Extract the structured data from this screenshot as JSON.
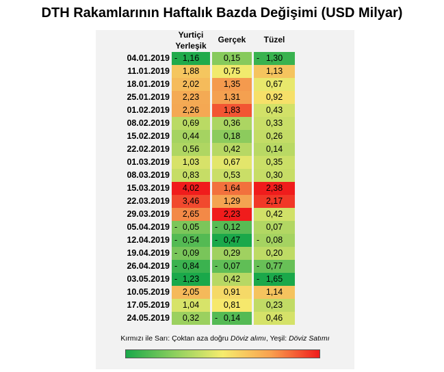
{
  "chart_data": {
    "type": "heatmap",
    "title": "DTH Rakamlarının Haftalık Bazda Değişimi (USD Milyar)",
    "columns": [
      "Yurtiçi Yerleşik",
      "Gerçek",
      "Tüzel"
    ],
    "rows": [
      "04.01.2019",
      "11.01.2019",
      "18.01.2019",
      "25.01.2019",
      "01.02.2019",
      "08.02.2019",
      "15.02.2019",
      "22.02.2019",
      "01.03.2019",
      "08.03.2019",
      "15.03.2019",
      "22.03.2019",
      "29.03.2019",
      "05.04.2019",
      "12.04.2019",
      "19.04.2019",
      "26.04.2019",
      "03.05.2019",
      "10.05.2019",
      "17.05.2019",
      "24.05.2019"
    ],
    "values": [
      [
        -1.16,
        0.15,
        -1.3
      ],
      [
        1.88,
        0.75,
        1.13
      ],
      [
        2.02,
        1.35,
        0.67
      ],
      [
        2.23,
        1.31,
        0.92
      ],
      [
        2.26,
        1.83,
        0.43
      ],
      [
        0.69,
        0.36,
        0.33
      ],
      [
        0.44,
        0.18,
        0.26
      ],
      [
        0.56,
        0.42,
        0.14
      ],
      [
        1.03,
        0.67,
        0.35
      ],
      [
        0.83,
        0.53,
        0.3
      ],
      [
        4.02,
        1.64,
        2.38
      ],
      [
        3.46,
        1.29,
        2.17
      ],
      [
        2.65,
        2.23,
        0.42
      ],
      [
        -0.05,
        -0.12,
        0.07
      ],
      [
        -0.54,
        -0.47,
        -0.08
      ],
      [
        -0.09,
        0.29,
        0.2
      ],
      [
        -0.84,
        -0.07,
        -0.77
      ],
      [
        -1.23,
        0.42,
        -1.65
      ],
      [
        2.05,
        0.91,
        1.14
      ],
      [
        1.04,
        0.81,
        0.23
      ],
      [
        0.32,
        -0.14,
        0.46
      ]
    ],
    "colors": {
      "green": "#1aa84a",
      "yellow": "#f6ec6e",
      "red": "#f01c1c"
    },
    "legend_note": {
      "prefix": "Kırmızı ile Sarı: Çoktan aza doğru ",
      "buy": "Döviz alımı",
      "mid": ", Yeşil: ",
      "sell": "Döviz Satımı"
    }
  }
}
